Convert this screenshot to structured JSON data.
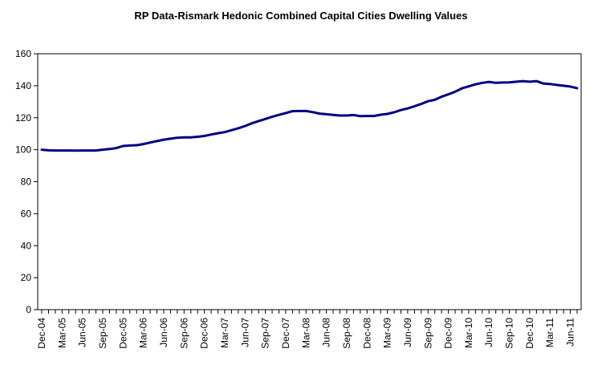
{
  "chart_data": {
    "type": "line",
    "title": "RP Data-Rismark Hedonic Combined Capital Cities Dwelling Values",
    "xlabel": "",
    "ylabel": "",
    "ylim": [
      0,
      160
    ],
    "yticks": [
      0,
      20,
      40,
      60,
      80,
      100,
      120,
      140,
      160
    ],
    "grid": false,
    "legend": "none",
    "x_tick_labels": [
      "Dec-04",
      "Mar-05",
      "Jun-05",
      "Sep-05",
      "Dec-05",
      "Mar-06",
      "Jun-06",
      "Sep-06",
      "Dec-06",
      "Mar-07",
      "Jun-07",
      "Sep-07",
      "Dec-07",
      "Mar-08",
      "Jun-08",
      "Sep-08",
      "Dec-08",
      "Mar-09",
      "Jun-09",
      "Sep-09",
      "Dec-09",
      "Mar-10",
      "Jun-10",
      "Sep-10",
      "Dec-10",
      "Mar-11",
      "Jun-11"
    ],
    "x": [
      "Dec-04",
      "Jan-05",
      "Feb-05",
      "Mar-05",
      "Apr-05",
      "May-05",
      "Jun-05",
      "Jul-05",
      "Aug-05",
      "Sep-05",
      "Oct-05",
      "Nov-05",
      "Dec-05",
      "Jan-06",
      "Feb-06",
      "Mar-06",
      "Apr-06",
      "May-06",
      "Jun-06",
      "Jul-06",
      "Aug-06",
      "Sep-06",
      "Oct-06",
      "Nov-06",
      "Dec-06",
      "Jan-07",
      "Feb-07",
      "Mar-07",
      "Apr-07",
      "May-07",
      "Jun-07",
      "Jul-07",
      "Aug-07",
      "Sep-07",
      "Oct-07",
      "Nov-07",
      "Dec-07",
      "Jan-08",
      "Feb-08",
      "Mar-08",
      "Apr-08",
      "May-08",
      "Jun-08",
      "Jul-08",
      "Aug-08",
      "Sep-08",
      "Oct-08",
      "Nov-08",
      "Dec-08",
      "Jan-09",
      "Feb-09",
      "Mar-09",
      "Apr-09",
      "May-09",
      "Jun-09",
      "Jul-09",
      "Aug-09",
      "Sep-09",
      "Oct-09",
      "Nov-09",
      "Dec-09",
      "Jan-10",
      "Feb-10",
      "Mar-10",
      "Apr-10",
      "May-10",
      "Jun-10",
      "Jul-10",
      "Aug-10",
      "Sep-10",
      "Oct-10",
      "Nov-10",
      "Dec-10",
      "Jan-11",
      "Feb-11",
      "Mar-11",
      "Apr-11",
      "May-11",
      "Jun-11",
      "Jul-11"
    ],
    "series": [
      {
        "color": "#000080",
        "values": [
          100.0,
          99.6,
          99.5,
          99.5,
          99.5,
          99.4,
          99.5,
          99.5,
          99.5,
          100.0,
          100.4,
          101.0,
          102.3,
          102.6,
          102.8,
          103.5,
          104.5,
          105.4,
          106.3,
          106.9,
          107.5,
          107.7,
          107.7,
          108.1,
          108.6,
          109.5,
          110.3,
          111.0,
          112.2,
          113.4,
          114.8,
          116.5,
          117.9,
          119.2,
          120.6,
          121.8,
          122.9,
          124.1,
          124.2,
          124.2,
          123.5,
          122.6,
          122.2,
          121.8,
          121.4,
          121.4,
          121.7,
          121.0,
          121.1,
          121.1,
          121.9,
          122.4,
          123.4,
          124.8,
          125.8,
          127.2,
          128.6,
          130.3,
          131.2,
          133.1,
          134.6,
          136.3,
          138.4,
          139.6,
          140.9,
          141.8,
          142.4,
          141.8,
          142.0,
          142.1,
          142.5,
          142.9,
          142.5,
          142.9,
          141.4,
          141.1,
          140.5,
          140.0,
          139.5,
          138.5
        ]
      }
    ]
  }
}
